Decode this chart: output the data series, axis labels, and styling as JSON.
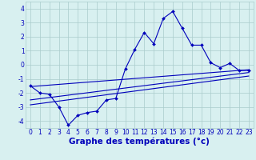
{
  "title": "",
  "xlabel": "Graphe des températures (°c)",
  "x_hours": [
    0,
    1,
    2,
    3,
    4,
    5,
    6,
    7,
    8,
    9,
    10,
    11,
    12,
    13,
    14,
    15,
    16,
    17,
    18,
    19,
    20,
    21,
    22,
    23
  ],
  "temp_line": [
    -1.5,
    -2.0,
    -2.1,
    -3.0,
    -4.3,
    -3.6,
    -3.4,
    -3.3,
    -2.5,
    -2.4,
    -0.3,
    1.1,
    2.3,
    1.5,
    3.3,
    3.8,
    2.6,
    1.4,
    1.4,
    0.15,
    -0.2,
    0.1,
    -0.4,
    -0.4
  ],
  "reg_line1_x": [
    0,
    23
  ],
  "reg_line1_y": [
    -1.55,
    -0.35
  ],
  "reg_line2_x": [
    0,
    23
  ],
  "reg_line2_y": [
    -2.5,
    -0.55
  ],
  "reg_line3_x": [
    0,
    23
  ],
  "reg_line3_y": [
    -2.85,
    -0.8
  ],
  "line_color": "#0000bb",
  "bg_color": "#d8f0f0",
  "grid_color": "#aacccc",
  "ylim": [
    -4.5,
    4.5
  ],
  "xlim": [
    -0.5,
    23.5
  ],
  "yticks": [
    -4,
    -3,
    -2,
    -1,
    0,
    1,
    2,
    3,
    4
  ],
  "xticks": [
    0,
    1,
    2,
    3,
    4,
    5,
    6,
    7,
    8,
    9,
    10,
    11,
    12,
    13,
    14,
    15,
    16,
    17,
    18,
    19,
    20,
    21,
    22,
    23
  ],
  "tick_fontsize": 5.5,
  "xlabel_fontsize": 7.5,
  "xlabel_fontweight": "bold",
  "marker": "D",
  "marker_size": 2.0,
  "linewidth": 0.8
}
